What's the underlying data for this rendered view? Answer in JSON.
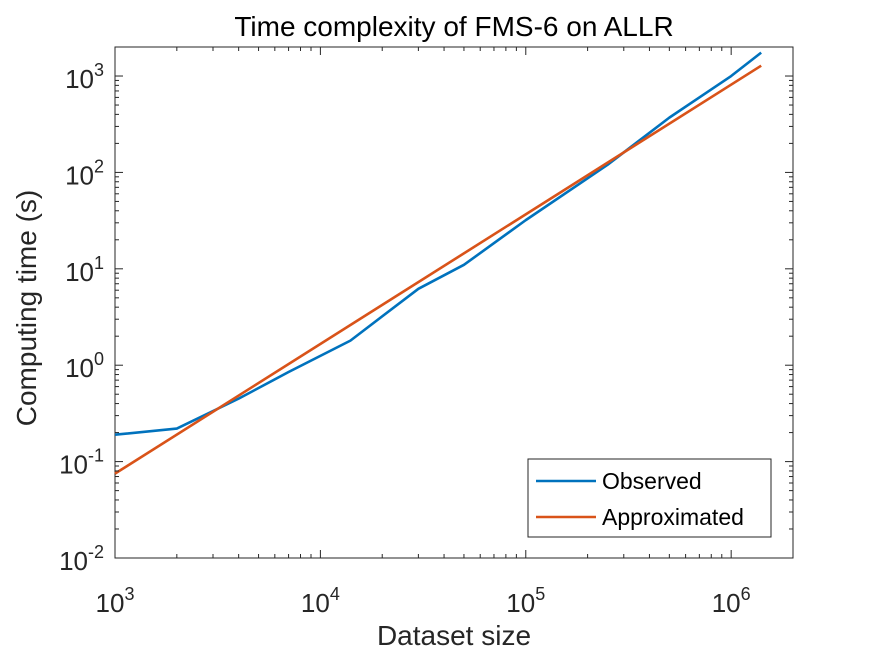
{
  "chart_data": {
    "type": "line",
    "title": "Time complexity of FMS-6 on ALLR",
    "xlabel": "Dataset size",
    "ylabel": "Computing time (s)",
    "xscale": "log",
    "yscale": "log",
    "xlim": [
      1000,
      2000000
    ],
    "ylim": [
      0.01,
      2000
    ],
    "xticks": [
      {
        "value": 1000,
        "base": "10",
        "exp": "3"
      },
      {
        "value": 10000,
        "base": "10",
        "exp": "4"
      },
      {
        "value": 100000,
        "base": "10",
        "exp": "5"
      },
      {
        "value": 1000000,
        "base": "10",
        "exp": "6"
      }
    ],
    "yticks": [
      {
        "value": 0.01,
        "base": "10",
        "exp": "-2"
      },
      {
        "value": 0.1,
        "base": "10",
        "exp": "-1"
      },
      {
        "value": 1,
        "base": "10",
        "exp": "0"
      },
      {
        "value": 10,
        "base": "10",
        "exp": "1"
      },
      {
        "value": 100,
        "base": "10",
        "exp": "2"
      },
      {
        "value": 1000,
        "base": "10",
        "exp": "3"
      }
    ],
    "grid": false,
    "legend_position": "bottom-right",
    "series": [
      {
        "name": "Observed",
        "color": "#0072BD",
        "x": [
          1000,
          2000,
          4000,
          7000,
          14000,
          30000,
          50000,
          100000,
          250000,
          500000,
          700000,
          1000000,
          1400000
        ],
        "y": [
          0.19,
          0.22,
          0.45,
          0.85,
          1.8,
          6.2,
          11,
          32,
          120,
          370,
          600,
          1000,
          1750
        ]
      },
      {
        "name": "Approximated",
        "color": "#D95319",
        "x": [
          1000,
          1400000
        ],
        "y": [
          0.075,
          1280
        ]
      }
    ]
  }
}
